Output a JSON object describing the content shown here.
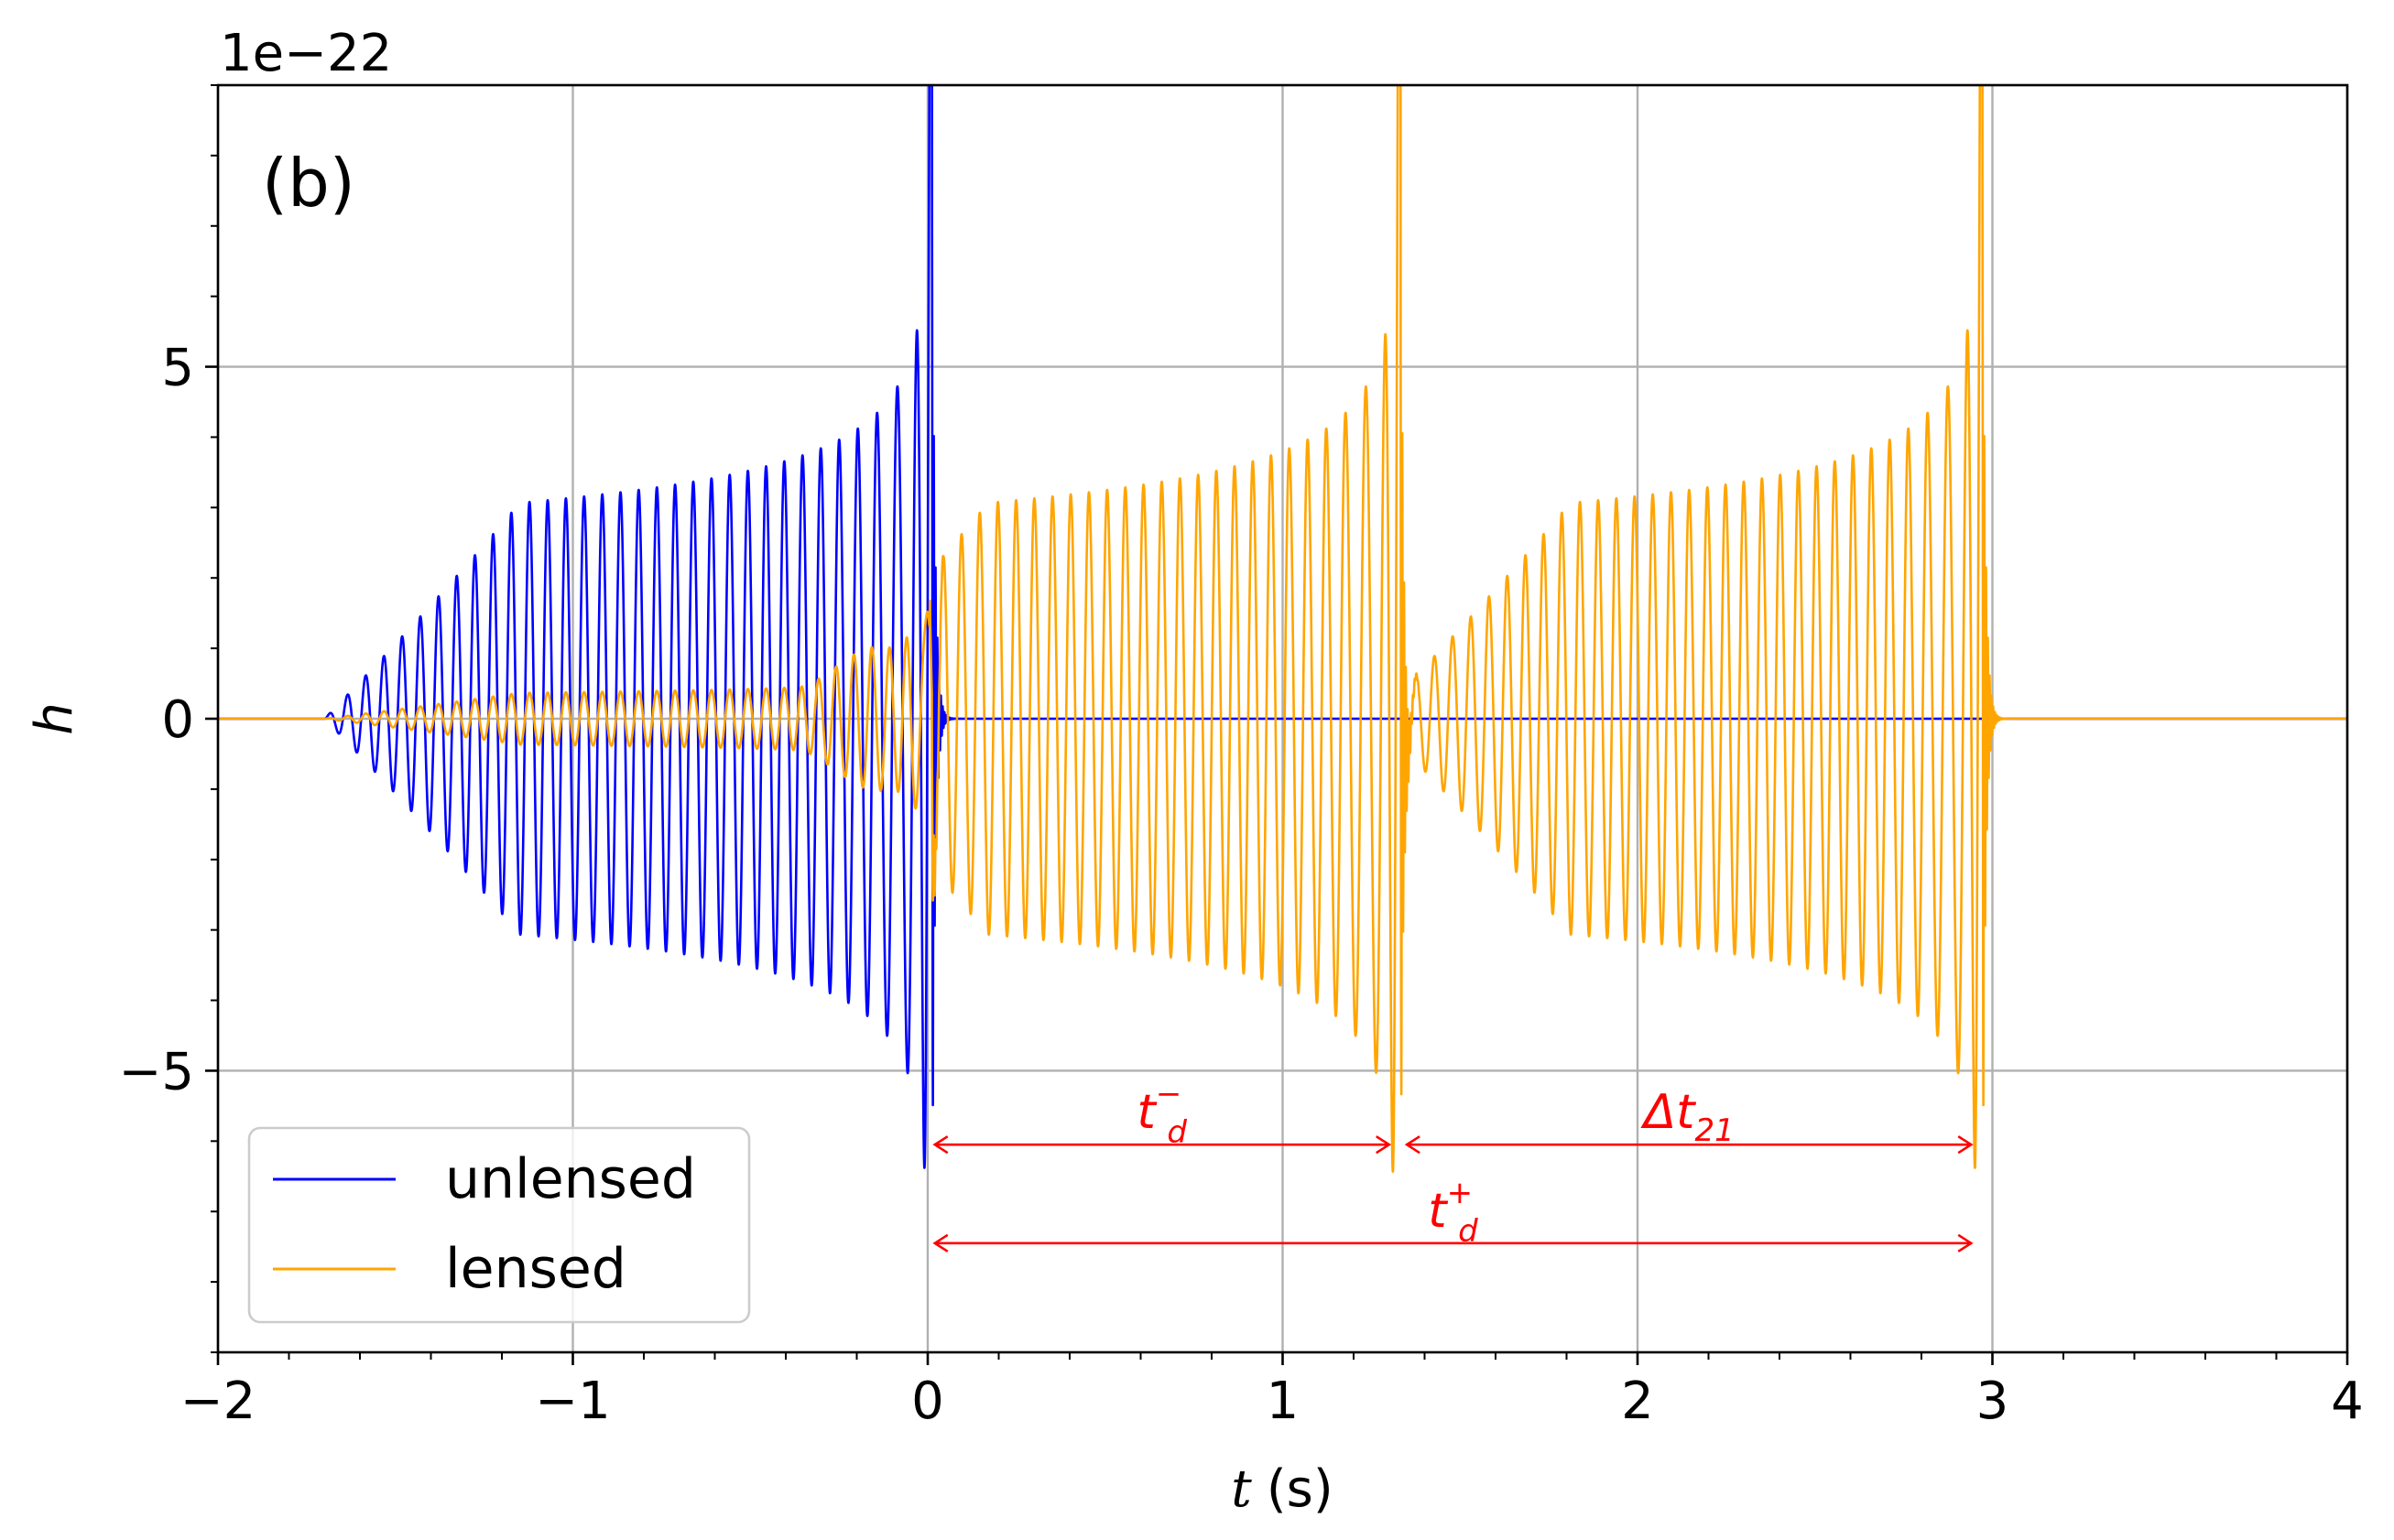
{
  "chart_data": {
    "type": "line",
    "panel_label": "(b)",
    "xlabel_var": "t",
    "xlabel_unit": "(s)",
    "ylabel": "h",
    "y_offset_label": "1e−22",
    "y_multiplier": 1e-22,
    "xlim": [
      -2,
      4
    ],
    "ylim": [
      -9,
      9
    ],
    "xticks": [
      -2,
      -1,
      0,
      1,
      2,
      3,
      4
    ],
    "xtick_labels": [
      "−2",
      "−1",
      "0",
      "1",
      "2",
      "3",
      "4"
    ],
    "yticks": [
      -5,
      0,
      5
    ],
    "ytick_labels": [
      "−5",
      "0",
      "5"
    ],
    "grid": true,
    "legend_position": "lower-left",
    "series": [
      {
        "name": "unlensed",
        "color": "#0000ff",
        "merger_times": [
          0.0
        ],
        "weights": [
          1.0
        ],
        "peak_amplitude": 7.5,
        "min_amplitude": -7.2
      },
      {
        "name": "lensed",
        "color": "#ffa500",
        "merger_times": [
          0.0,
          1.32,
          2.96
        ],
        "weights": [
          0.12,
          1.0,
          1.0
        ],
        "peak_amplitude": 7.5,
        "min_amplitude": -7.2
      }
    ],
    "annotations": [
      {
        "label": "t_d^-",
        "base": "t",
        "sub": "d",
        "sup": "−",
        "x_start": 0.02,
        "x_end": 1.3,
        "y": -6.05
      },
      {
        "label": "Δt_21",
        "base": "Δt",
        "sub": "21",
        "sup": "",
        "x_start": 1.35,
        "x_end": 2.94,
        "y": -6.05
      },
      {
        "label": "t_d^+",
        "base": "t",
        "sub": "d",
        "sup": "+",
        "x_start": 0.02,
        "x_end": 2.94,
        "y": -7.45
      }
    ],
    "annotation_color": "#ff0000"
  }
}
